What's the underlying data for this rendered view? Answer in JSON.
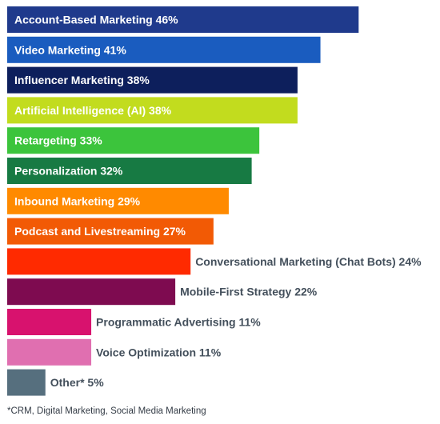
{
  "chart_data": {
    "type": "bar",
    "orientation": "horizontal",
    "unit": "%",
    "xlim": [
      0,
      50
    ],
    "grid": false,
    "bars": [
      {
        "label": "Account-Based Marketing",
        "value": 46,
        "color": "#1f3a8c",
        "label_inside": true
      },
      {
        "label": "Video Marketing",
        "value": 41,
        "color": "#1a5cbf",
        "label_inside": true
      },
      {
        "label": "Influencer Marketing",
        "value": 38,
        "color": "#0d1f5c",
        "label_inside": true
      },
      {
        "label": "Artificial Intelligence (AI)",
        "value": 38,
        "color": "#c2dc1e",
        "label_inside": true
      },
      {
        "label": "Retargeting",
        "value": 33,
        "color": "#3cc43c",
        "label_inside": true
      },
      {
        "label": "Personalization",
        "value": 32,
        "color": "#177a43",
        "label_inside": true
      },
      {
        "label": "Inbound Marketing",
        "value": 29,
        "color": "#ff8a00",
        "label_inside": true
      },
      {
        "label": "Podcast and Livestreaming",
        "value": 27,
        "color": "#f25a05",
        "label_inside": true
      },
      {
        "label": "Conversational Marketing (Chat Bots)",
        "value": 24,
        "color": "#ff2a00",
        "label_inside": false
      },
      {
        "label": "Mobile-First Strategy",
        "value": 22,
        "color": "#7e0b50",
        "label_inside": false
      },
      {
        "label": "Programmatic Advertising",
        "value": 11,
        "color": "#d8126e",
        "label_inside": false
      },
      {
        "label": "Voice Optimization",
        "value": 11,
        "color": "#e06fb0",
        "label_inside": false
      },
      {
        "label": "Other*",
        "value": 5,
        "color": "#566f7e",
        "label_inside": false
      }
    ],
    "inside_label_color": "#ffffff",
    "outside_label_color": "#44505c"
  },
  "footnote": "*CRM, Digital Marketing, Social Media Marketing"
}
